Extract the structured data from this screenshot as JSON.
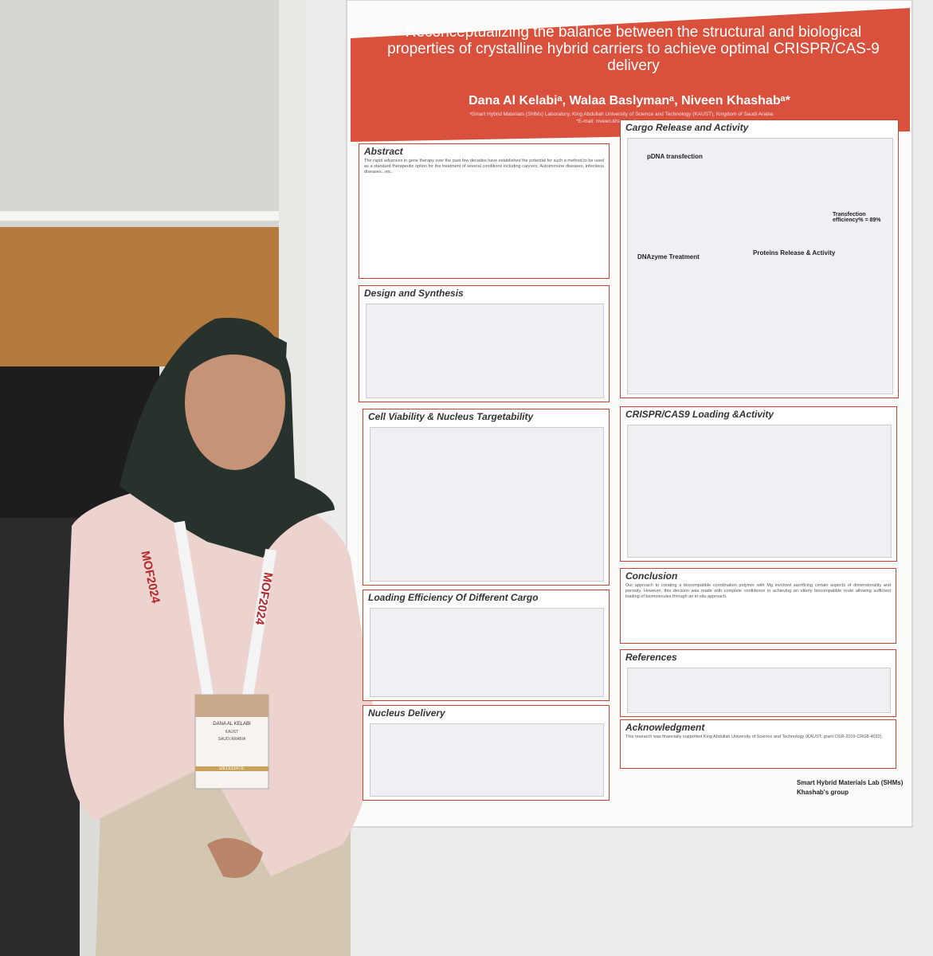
{
  "poster": {
    "title": "Reconceptualizing the balance between the structural and biological properties of crystalline hybrid carriers to achieve optimal CRISPR/CAS-9 delivery",
    "authors": "Dana Al Kelabiᵃ, Walaa Baslymanᵃ, Niveen Khashabᵃ*",
    "affiliation": "ᵃSmart Hybrid Materials (SHMs) Laboratory, King Abdullah University of Science and Technology (KAUST), Kingdom of Saudi Arabia",
    "email": "*E-mail: niveen.khashab@kaust.edu.sa",
    "sections": [
      {
        "heading": "Abstract",
        "text": "The rapid advances in gene therapy over the past few decades have established the potential for such a method to be used as a standard therapeutic option for the treatment of several conditions including cancers, Autoimmune diseases, infectious diseases...etc."
      },
      {
        "heading": "Design and Synthesis"
      },
      {
        "heading": "Cell Viability & Nucleus Targetability"
      },
      {
        "heading": "Loading Efficiency Of Different Cargo"
      },
      {
        "heading": "Nucleus Delivery"
      },
      {
        "heading": "Cargo Release and Activity"
      },
      {
        "heading": "CRISPR/CAS9 Loading &Activity"
      },
      {
        "heading": "Conclusion",
        "text": "Our approach to creating a biocompatible coordination polymer with Mg involved sacrificing certain aspects of dimensionality and porosity. However, this decision was made with complete confidence in achieving an utterly biocompatible route allowing sufficient loading of biomolecules through an in-situ approach."
      },
      {
        "heading": "References"
      },
      {
        "heading": "Acknowledgment",
        "text": "This research was financially supported King Abdullah University of Science and Technology (KAUST; grant OSR-2019-CRG8-4032)."
      }
    ],
    "subheadings": [
      "pDNA transfection",
      "DNAzyme Treatment",
      "Proteins Release & Activity",
      "Transfection efficiency% = 89%"
    ],
    "lab": "Smart Hybrid Materials Lab (SHMs)",
    "group": "Khashab's group"
  },
  "badge": {
    "name": "DANA AL KELABI",
    "org": "KAUST",
    "country": "SAUDI ARABIA",
    "role": "DELEGATE",
    "lanyard": "MOF2024"
  }
}
